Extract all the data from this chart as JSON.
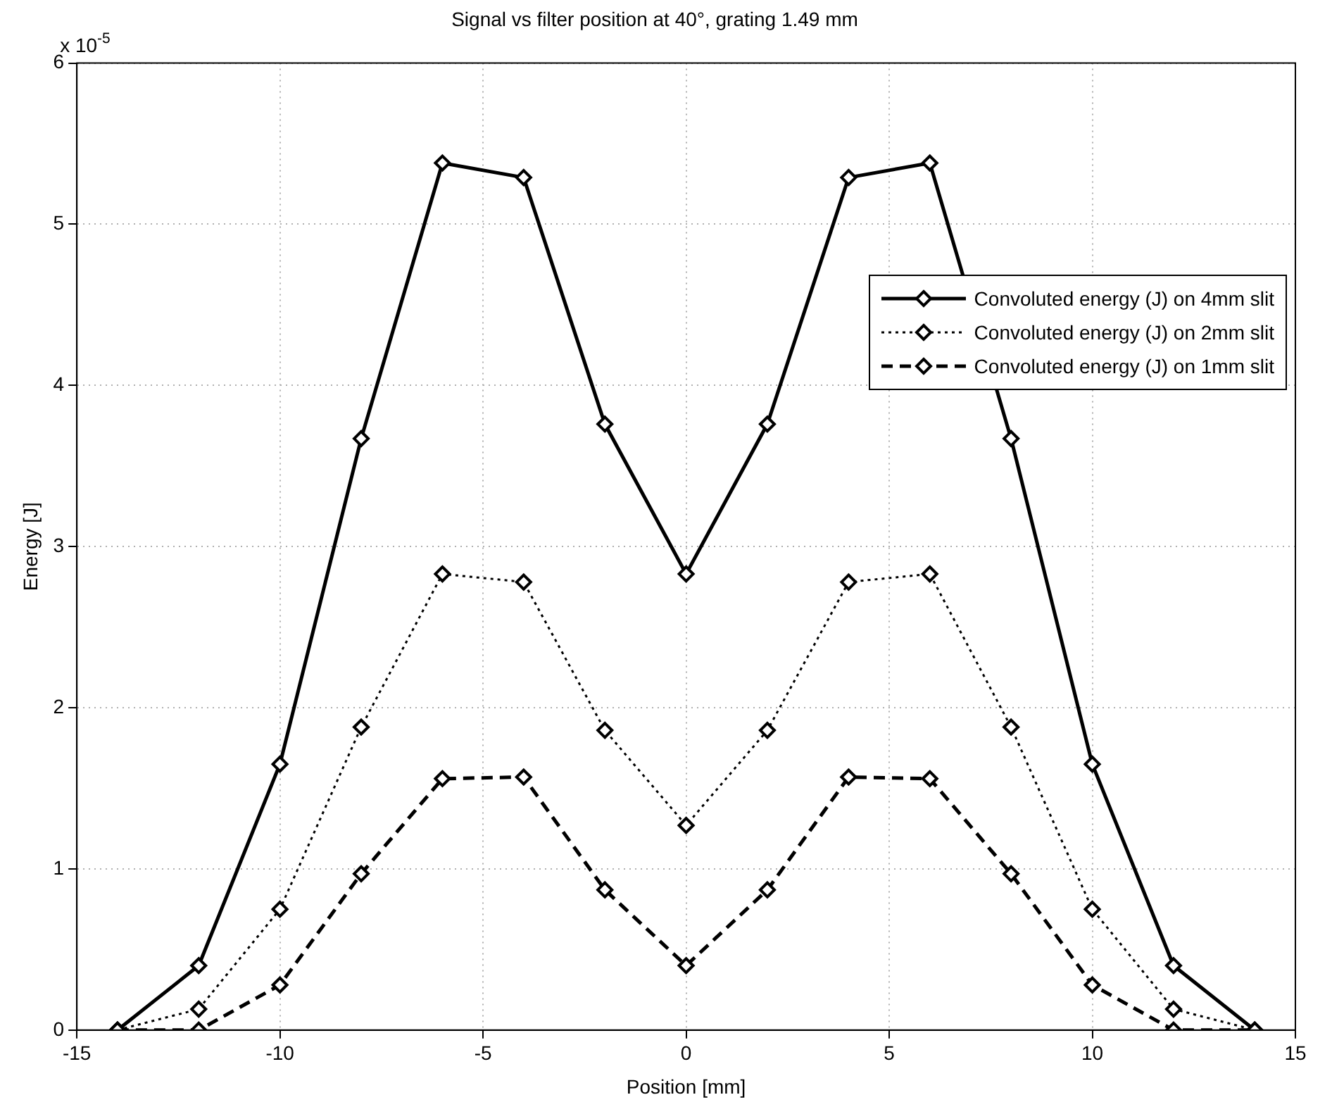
{
  "chart_data": {
    "type": "line",
    "title": "Signal vs filter position at 40°, grating 1.49 mm",
    "xlabel": "Position [mm]",
    "ylabel": "Energy [J]",
    "annotations": [
      "x 10$^{-5}$"
    ],
    "x": [
      -14,
      -12,
      -10,
      -8,
      -6,
      -4,
      -2,
      0,
      2,
      4,
      6,
      8,
      10,
      12,
      14
    ],
    "series": [
      {
        "name": "Convoluted energy (J) on 4mm slit",
        "color": "#000000",
        "line_style": "solid",
        "values": [
          0,
          0.4,
          1.65,
          3.67,
          5.38,
          5.29,
          3.76,
          2.83,
          3.76,
          5.29,
          5.38,
          3.67,
          1.65,
          0.4,
          0
        ]
      },
      {
        "name": "Convoluted energy (J) on 2mm slit",
        "color": "#000000",
        "line_style": "dotted",
        "values": [
          0,
          0.13,
          0.75,
          1.88,
          2.83,
          2.78,
          1.86,
          1.27,
          1.86,
          2.78,
          2.83,
          1.88,
          0.75,
          0.13,
          0
        ]
      },
      {
        "name": "Convoluted energy (J) on 1mm slit",
        "color": "#000000",
        "line_style": "dashed",
        "values": [
          0,
          0,
          0.28,
          0.97,
          1.56,
          1.57,
          0.87,
          0.4,
          0.87,
          1.57,
          1.56,
          0.97,
          0.28,
          0,
          0
        ]
      }
    ],
    "xlim": [
      -15,
      15
    ],
    "xticks": [
      -15,
      -10,
      -5,
      0,
      5,
      10,
      15
    ],
    "ylim": [
      0,
      6
    ],
    "yticks": [
      0,
      1,
      2,
      3,
      4,
      5,
      6
    ],
    "grid": true,
    "legend": "top right",
    "marker": "diamond"
  }
}
